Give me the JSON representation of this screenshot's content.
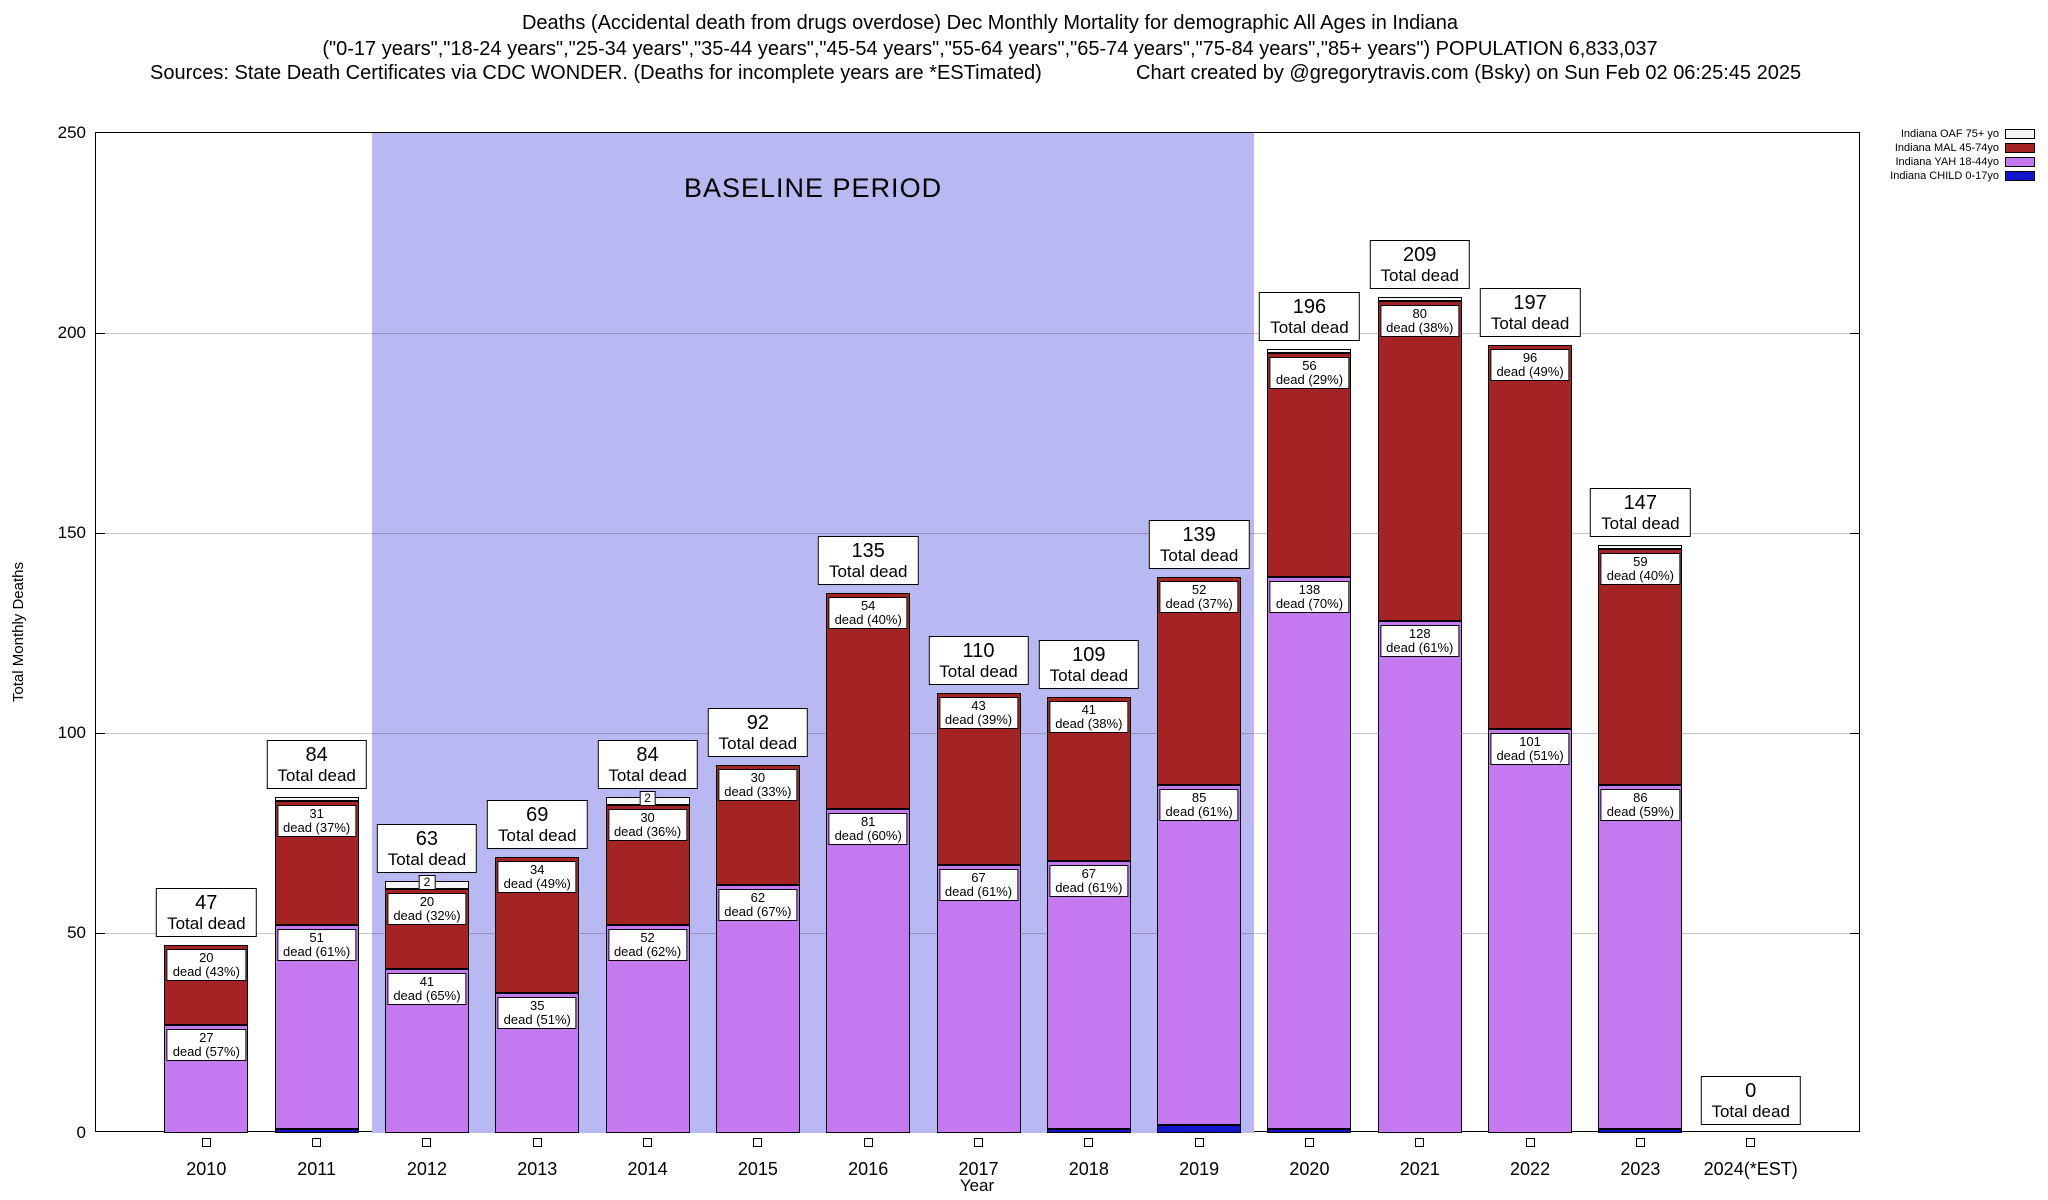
{
  "title": {
    "line1": "Deaths (Accidental death from drugs overdose) Dec Monthly Mortality for demographic All Ages in Indiana",
    "line2": "(\"0-17 years\",\"18-24 years\",\"25-34 years\",\"35-44 years\",\"45-54 years\",\"55-64 years\",\"65-74 years\",\"75-84 years\",\"85+ years\") POPULATION 6,833,037",
    "sources": "Sources: State Death Certificates via CDC WONDER. (Deaths for incomplete years are *ESTimated)",
    "credit": "Chart created by @gregorytravis.com (Bsky) on Sun Feb 02 06:25:45 2025"
  },
  "chart_data": {
    "type": "bar",
    "stacked": true,
    "xlabel": "Year",
    "ylabel": "Total Monthly Deaths",
    "ylim": [
      0,
      250
    ],
    "yticks": [
      0,
      50,
      100,
      150,
      200,
      250
    ],
    "grid": true,
    "legend_position": "top-right-outside",
    "baseline_period": {
      "label": "BASELINE PERIOD",
      "from": "2012",
      "to": "2019"
    },
    "total_caption": "Total dead",
    "legend": [
      {
        "name": "Indiana OAF 75+ yo",
        "key": "oaf",
        "color": "#f4f4f4"
      },
      {
        "name": "Indiana MAL 45-74yo",
        "key": "mal",
        "color": "#a42323"
      },
      {
        "name": "Indiana YAH 18-44yo",
        "key": "yah",
        "color": "#c479f0"
      },
      {
        "name": "Indiana CHILD 0-17yo",
        "key": "child",
        "color": "#1414c8"
      }
    ],
    "categories": [
      "2010",
      "2011",
      "2012",
      "2013",
      "2014",
      "2015",
      "2016",
      "2017",
      "2018",
      "2019",
      "2020",
      "2021",
      "2022",
      "2023",
      "2024(*EST)"
    ],
    "totals": [
      47,
      84,
      63,
      69,
      84,
      92,
      135,
      110,
      109,
      139,
      196,
      209,
      197,
      147,
      0
    ],
    "bars": [
      {
        "year": "2010",
        "total": 47,
        "child": 0,
        "yah": 27,
        "mal": 20,
        "oaf": 0,
        "yah_label": [
          "27",
          "dead (57%)"
        ],
        "mal_label": [
          "20",
          "dead (43%)"
        ],
        "oaf_label": null
      },
      {
        "year": "2011",
        "total": 84,
        "child": 1,
        "yah": 51,
        "mal": 31,
        "oaf": 1,
        "yah_label": [
          "51",
          "dead (61%)"
        ],
        "mal_label": [
          "31",
          "dead (37%)"
        ],
        "oaf_label": null
      },
      {
        "year": "2012",
        "total": 63,
        "child": 0,
        "yah": 41,
        "mal": 20,
        "oaf": 2,
        "yah_label": [
          "41",
          "dead (65%)"
        ],
        "mal_label": [
          "20",
          "dead (32%)"
        ],
        "oaf_label": [
          "2"
        ]
      },
      {
        "year": "2013",
        "total": 69,
        "child": 0,
        "yah": 35,
        "mal": 34,
        "oaf": 0,
        "yah_label": [
          "35",
          "dead (51%)"
        ],
        "mal_label": [
          "34",
          "dead (49%)"
        ],
        "oaf_label": null
      },
      {
        "year": "2014",
        "total": 84,
        "child": 0,
        "yah": 52,
        "mal": 30,
        "oaf": 2,
        "yah_label": [
          "52",
          "dead (62%)"
        ],
        "mal_label": [
          "30",
          "dead (36%)"
        ],
        "oaf_label": [
          "2"
        ]
      },
      {
        "year": "2015",
        "total": 92,
        "child": 0,
        "yah": 62,
        "mal": 30,
        "oaf": 0,
        "yah_label": [
          "62",
          "dead (67%)"
        ],
        "mal_label": [
          "30",
          "dead (33%)"
        ],
        "oaf_label": null
      },
      {
        "year": "2016",
        "total": 135,
        "child": 0,
        "yah": 81,
        "mal": 54,
        "oaf": 0,
        "yah_label": [
          "81",
          "dead (60%)"
        ],
        "mal_label": [
          "54",
          "dead (40%)"
        ],
        "oaf_label": null
      },
      {
        "year": "2017",
        "total": 110,
        "child": 0,
        "yah": 67,
        "mal": 43,
        "oaf": 0,
        "yah_label": [
          "67",
          "dead (61%)"
        ],
        "mal_label": [
          "43",
          "dead (39%)"
        ],
        "oaf_label": null
      },
      {
        "year": "2018",
        "total": 109,
        "child": 1,
        "yah": 67,
        "mal": 41,
        "oaf": 0,
        "yah_label": [
          "67",
          "dead (61%)"
        ],
        "mal_label": [
          "41",
          "dead (38%)"
        ],
        "oaf_label": null
      },
      {
        "year": "2019",
        "total": 139,
        "child": 2,
        "yah": 85,
        "mal": 52,
        "oaf": 0,
        "yah_label": [
          "85",
          "dead (61%)"
        ],
        "mal_label": [
          "52",
          "dead (37%)"
        ],
        "oaf_label": null
      },
      {
        "year": "2020",
        "total": 196,
        "child": 1,
        "yah": 138,
        "mal": 56,
        "oaf": 1,
        "yah_label": [
          "138",
          "dead (70%)"
        ],
        "mal_label": [
          "56",
          "dead (29%)"
        ],
        "oaf_label": null
      },
      {
        "year": "2021",
        "total": 209,
        "child": 0,
        "yah": 128,
        "mal": 80,
        "oaf": 1,
        "yah_label": [
          "128",
          "dead (61%)"
        ],
        "mal_label": [
          "80",
          "dead (38%)"
        ],
        "oaf_label": null
      },
      {
        "year": "2022",
        "total": 197,
        "child": 0,
        "yah": 101,
        "mal": 96,
        "oaf": 0,
        "yah_label": [
          "101",
          "dead (51%)"
        ],
        "mal_label": [
          "96",
          "dead (49%)"
        ],
        "oaf_label": null
      },
      {
        "year": "2023",
        "total": 147,
        "child": 1,
        "yah": 86,
        "mal": 59,
        "oaf": 1,
        "yah_label": [
          "86",
          "dead (59%)"
        ],
        "mal_label": [
          "59",
          "dead (40%)"
        ],
        "oaf_label": null
      },
      {
        "year": "2024(*EST)",
        "total": 0,
        "child": 0,
        "yah": 0,
        "mal": 0,
        "oaf": 0,
        "yah_label": null,
        "mal_label": null,
        "oaf_label": null
      }
    ]
  },
  "colors": {
    "baseline_region": "#b8b8f2",
    "bar_border": "#000000",
    "background": "#ffffff"
  }
}
